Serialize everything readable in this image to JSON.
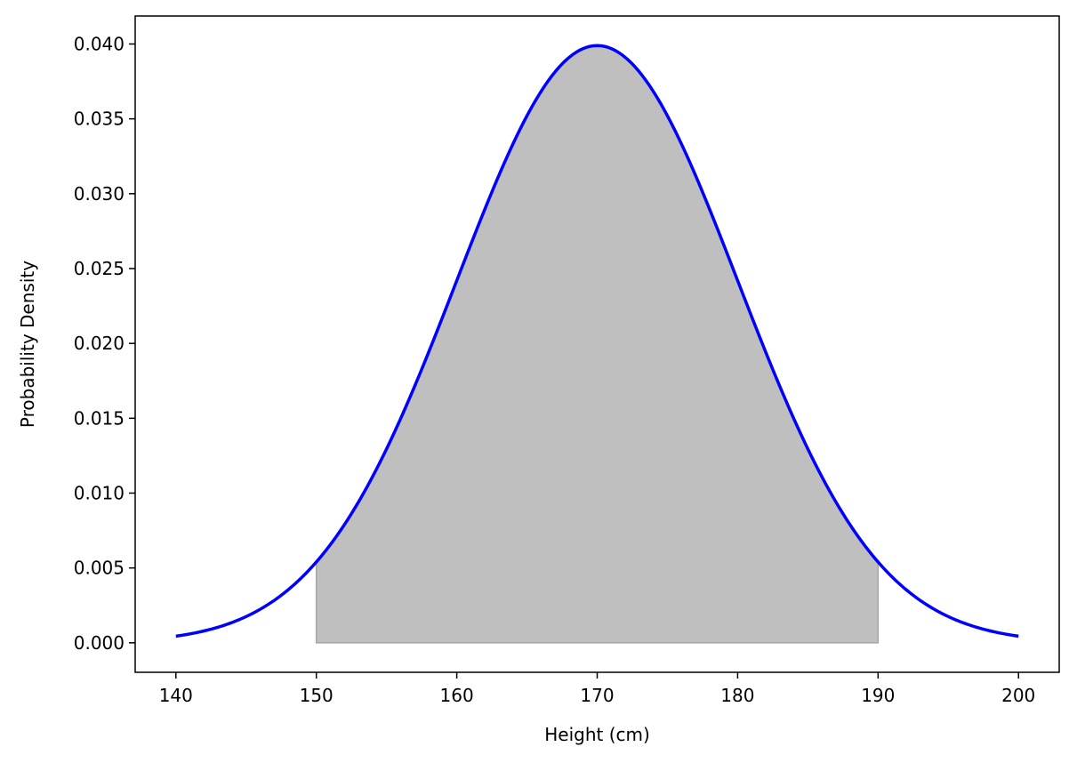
{
  "chart_data": {
    "type": "area",
    "title": "",
    "xlabel": "Height (cm)",
    "ylabel": "Probability Density",
    "xlim": [
      137.1,
      202.9
    ],
    "ylim": [
      -0.00197,
      0.04187
    ],
    "xticks": [
      140,
      150,
      160,
      170,
      180,
      190,
      200
    ],
    "xtick_labels": [
      "140",
      "150",
      "160",
      "170",
      "180",
      "190",
      "200"
    ],
    "yticks": [
      0.0,
      0.005,
      0.01,
      0.015,
      0.02,
      0.025,
      0.03,
      0.035,
      0.04
    ],
    "ytick_labels": [
      "0.000",
      "0.005",
      "0.010",
      "0.015",
      "0.020",
      "0.025",
      "0.030",
      "0.035",
      "0.040"
    ],
    "grid": false,
    "series": [
      {
        "kind": "normal_pdf_curve",
        "mean": 170,
        "std": 10,
        "x_range": [
          140,
          200
        ],
        "color": "#0000ff"
      }
    ],
    "shaded_region": {
      "x_range": [
        150,
        190
      ],
      "color": "#bfbfbf"
    }
  }
}
